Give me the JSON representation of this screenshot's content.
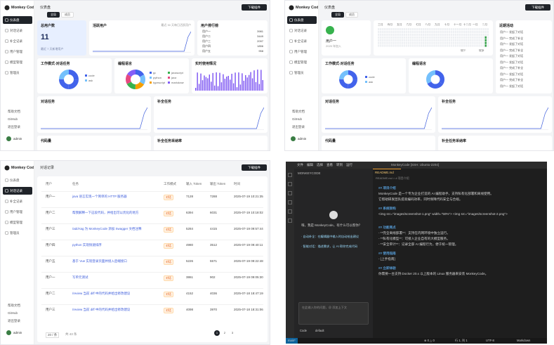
{
  "sidebar": {
    "brand": "Monkey Code",
    "nav": [
      "仪表盘",
      "对话记录",
      "补全记录",
      "用户管理",
      "模型管理",
      "管理员"
    ],
    "footer": [
      "帮助文档",
      "GitHub",
      "退出登录"
    ],
    "user": "admin"
  },
  "dashboard": {
    "crumb": "仪表盘",
    "tabs": [
      "全局",
      "成员"
    ],
    "button": "下载插件",
    "total_users": {
      "title": "总用户数",
      "value": "11",
      "note": "最近 7 天新增用户"
    },
    "active": "活跃用户",
    "active_note": "最近 30 天每日活跃用户",
    "ranking": {
      "title": "用户排行榜",
      "rows": [
        [
          "用户一",
          "3981"
        ],
        [
          "用户二",
          "3449"
        ],
        [
          "用户三",
          "2097"
        ],
        [
          "用户四",
          "1856"
        ],
        [
          "用户五",
          "958"
        ]
      ]
    },
    "work_mode": "工作模式-对话任务",
    "work_legend": [
      "code",
      "ask"
    ],
    "languages": "编程语言",
    "lang_legend": [
      "go",
      "python",
      "typescript",
      "javascript",
      "java",
      "markdown"
    ],
    "realtime": "实时使用情况",
    "chat": "对话任务",
    "completion": "补全任务",
    "code": "代码量",
    "accept": "补全任务采纳率"
  },
  "member": {
    "crumb": "仪表盘",
    "tabs": [
      "全局",
      "成员"
    ],
    "button": "下载插件",
    "user": "用户一",
    "since": "2025 年加入",
    "months": [
      "三月",
      "四月",
      "五月",
      "六月",
      "七月",
      "八月",
      "九月",
      "十月",
      "十一月",
      "十二月",
      "一月",
      "二月"
    ],
    "legend": [
      "较少",
      "较多"
    ],
    "recent": "近期活动",
    "recent_rows": [
      "用户一 发起了对话",
      "用户一 完成了补全",
      "用户一 发起了对话",
      "用户一 完成了补全",
      "用户一 发起了对话",
      "用户一 发起了对话",
      "用户一 完成了补全",
      "用户一 发起了对话",
      "用户一 完成了补全",
      "用户一 发起了对话"
    ],
    "work_mode": "工作模式-对话任务",
    "languages": "编程语言",
    "chat": "对话任务",
    "completion": "补全任务",
    "code": "代码量",
    "accept": "补全任务采纳率"
  },
  "records": {
    "crumb": "对话记录",
    "button": "下载插件",
    "headers": [
      "用户",
      "任务",
      "工作模式",
      "输入 Token",
      "输出 Token",
      "时间"
    ],
    "rows": [
      [
        "用户一",
        "java 语言实现一个简单的 HTTP 服务器",
        "对话",
        "7128",
        "7288",
        "2025-07-19 10:21:35"
      ],
      [
        "用户二",
        "帮我解释一下这段代码，并给出可以优化的地方",
        "对话",
        "6394",
        "6031",
        "2025-07-19 10:18:02"
      ],
      [
        "用户三",
        "/add-tag 为 MonkeyCode 添加 Swagger 文档注释",
        "对话",
        "5284",
        "4415",
        "2025-07-19 09:57:44"
      ],
      [
        "用户四",
        "python 实现快速排序",
        "对话",
        "4980",
        "3512",
        "2025-07-19 09:40:11"
      ],
      [
        "用户五",
        "基于 Vue 实现登录页面并接入后端接口",
        "对话",
        "5226",
        "5571",
        "2025-07-19 09:22:48"
      ],
      [
        "用户一",
        "写单元测试",
        "对话",
        "3861",
        "902",
        "2025-07-19 09:05:30"
      ],
      [
        "用户二",
        "/review 当前 diff 中的代码并给出修改建议",
        "对话",
        "4152",
        "4036",
        "2025-07-18 18:47:19"
      ],
      [
        "用户三",
        "/review 当前 diff 中的代码并给出修改建议",
        "对话",
        "4098",
        "3970",
        "2025-07-18 18:31:06"
      ]
    ],
    "page_size": "20 / 条",
    "total": "共 43 条",
    "pages": [
      "1",
      "2",
      "3"
    ]
  },
  "editor": {
    "menu": [
      "文件",
      "编辑",
      "选择",
      "查看",
      "转到",
      "运行"
    ],
    "window_title": "MonkeyCode [SSH: Ubuntu-2204]",
    "panel_title": "MONKEYCODE",
    "welcome": "嗨，我是 MonkeyCode，有什么可以帮你？",
    "tips": [
      "· 自动补全：在编辑器中输入时自动给出建议",
      "· 智能对话：描述需求，让 AI 帮你完成代码"
    ],
    "input": "在此输入你的问题，@ 添加上下文",
    "mode": "Code",
    "model": "default",
    "tab": "README.md",
    "breadcrumb": "README.md > # 项目介绍",
    "lines": [
      {
        "text": "## 项目介绍",
        "heading": true
      },
      {
        "text": "MonkeyCode 是一个专为企业打造的 AI 编程助手，支持私有化部署和离线使用。",
        "heading": false
      },
      {
        "text": "它帮助研发团队提高编码效率，同时保障代码安全与合规。",
        "heading": false
      },
      {
        "text": "## 系统架构",
        "heading": true
      },
      {
        "text": "<img src=\"images/screenshot-1.png\" width=\"50%\"> <img src=\"images/screenshot-2.png\">",
        "heading": false
      },
      {
        "text": "## 功能亮点",
        "heading": true
      },
      {
        "text": "- **完全离线部署**：支持在内网环境中独立运行。",
        "heading": false
      },
      {
        "text": "- **私有化模型**：可接入企业自有的大模型服务。",
        "heading": false
      },
      {
        "text": "- **安全审计**：记录全部 AI 编程行为，便于统一管理。",
        "heading": false
      },
      {
        "text": "## 使用指南",
        "heading": true
      },
      {
        "text": "- [上手指南]",
        "heading": false
      },
      {
        "text": "## 立即体验",
        "heading": true
      },
      {
        "text": "你需要一台支持 Docker 20.x 以上版本的 Linux 服务器来安装 MonkeyCode。",
        "heading": false
      }
    ],
    "status": [
      "main*",
      "⊗ 0 △ 0",
      "行 1, 列 1",
      "UTF-8",
      "Markdown"
    ]
  }
}
